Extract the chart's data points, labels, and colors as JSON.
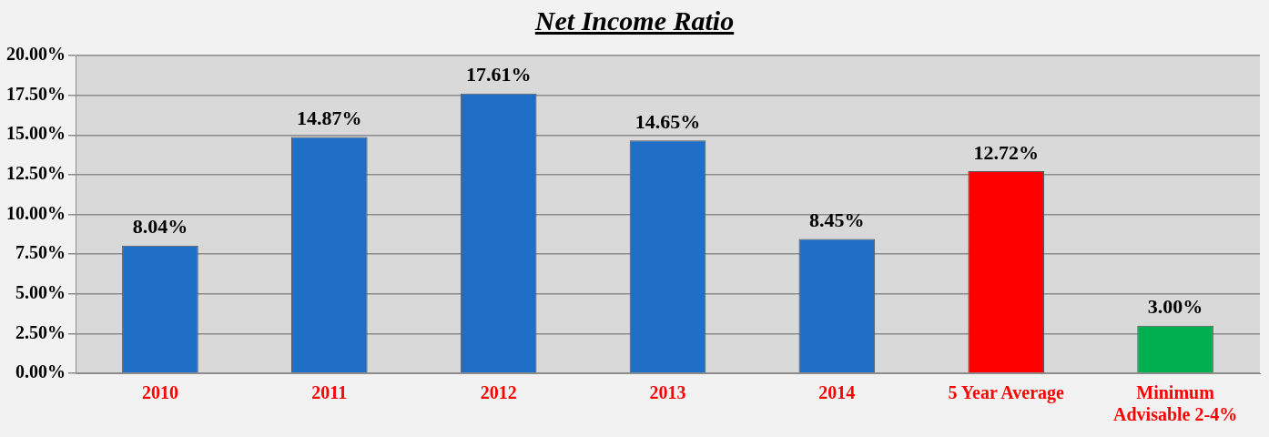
{
  "chart_data": {
    "type": "bar",
    "title": "Net Income Ratio",
    "categories": [
      "2010",
      "2011",
      "2012",
      "2013",
      "2014",
      "5 Year Average",
      "Minimum Advisable 2-4%"
    ],
    "values": [
      8.04,
      14.87,
      17.61,
      14.65,
      8.45,
      12.72,
      3.0
    ],
    "colors": [
      "#1f6fc6",
      "#1f6fc6",
      "#1f6fc6",
      "#1f6fc6",
      "#1f6fc6",
      "#ff0000",
      "#00b050"
    ],
    "value_labels": [
      "8.04%",
      "14.87%",
      "17.61%",
      "14.65%",
      "8.45%",
      "12.72%",
      "3.00%"
    ],
    "ylim": [
      0,
      20
    ],
    "yticks": [
      {
        "value": 0,
        "label": "0.00%"
      },
      {
        "value": 2.5,
        "label": "2.50%"
      },
      {
        "value": 5,
        "label": "5.00%"
      },
      {
        "value": 7.5,
        "label": "7.50%"
      },
      {
        "value": 10,
        "label": "10.00%"
      },
      {
        "value": 12.5,
        "label": "12.50%"
      },
      {
        "value": 15,
        "label": "15.00%"
      },
      {
        "value": 17.5,
        "label": "17.50%"
      },
      {
        "value": 20,
        "label": "20.00%"
      }
    ],
    "grid": "y",
    "legend": false
  }
}
